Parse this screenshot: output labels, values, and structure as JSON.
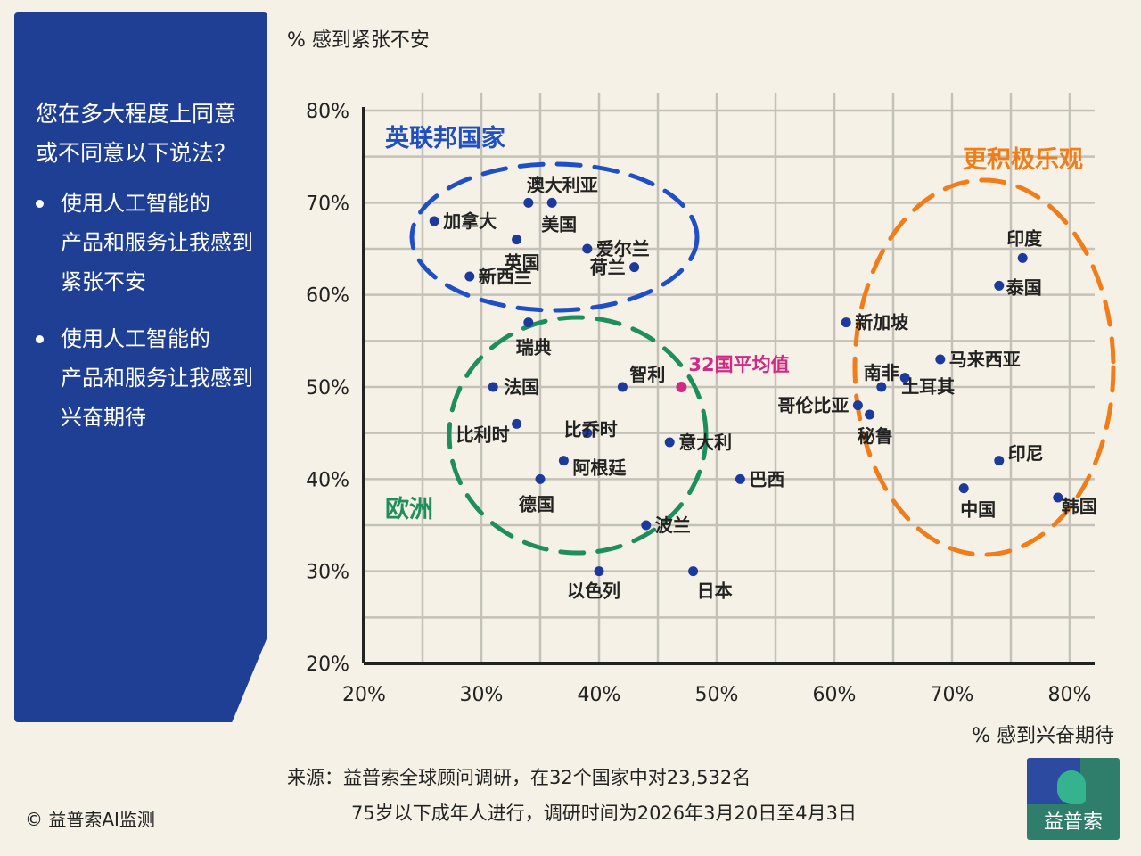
{
  "sidebar": {
    "question": [
      "您在多大程度上同意",
      "或不同意以下说法？"
    ],
    "bullets": [
      [
        "使用人工智能的",
        "产品和服务让我感到",
        "紧张不安"
      ],
      [
        "使用人工智能的",
        "产品和服务让我感到",
        "兴奋期待"
      ]
    ]
  },
  "source": {
    "line1": "来源：益普索全球顾问调研，在32个国家中对23,532名",
    "line2": "75岁以下成年人进行，调研时间为2026年3月20日至4月3日"
  },
  "copyright": "© 益普索AI监测",
  "logo": {
    "text": "益普索"
  },
  "colors": {
    "point": "#1c3a9c",
    "average": "#d12a84",
    "commonwealth": "#1f4fc2",
    "europe": "#1f8e5e",
    "optimistic": "#f07d1a"
  },
  "chart_data": {
    "type": "scatter",
    "ylabel": "% 感到紧张不安",
    "xlabel": "% 感到兴奋期待",
    "xlim": [
      20,
      80
    ],
    "ylim": [
      20,
      80
    ],
    "xticks": [
      20,
      30,
      40,
      50,
      60,
      70,
      80
    ],
    "yticks": [
      20,
      30,
      40,
      50,
      60,
      70,
      80
    ],
    "tick_suffix": "%",
    "grid": true,
    "points": [
      {
        "label": "加拿大",
        "x": 26,
        "y": 68
      },
      {
        "label": "澳大利亚",
        "x": 34,
        "y": 70
      },
      {
        "label": "美国",
        "x": 36,
        "y": 70
      },
      {
        "label": "英国",
        "x": 33,
        "y": 66
      },
      {
        "label": "爱尔兰",
        "x": 39,
        "y": 65
      },
      {
        "label": "新西兰",
        "x": 29,
        "y": 62
      },
      {
        "label": "荷兰",
        "x": 43,
        "y": 63
      },
      {
        "label": "瑞典",
        "x": 34,
        "y": 57
      },
      {
        "label": "法国",
        "x": 31,
        "y": 50
      },
      {
        "label": "智利",
        "x": 42,
        "y": 50
      },
      {
        "label": "比利时",
        "x": 33,
        "y": 46
      },
      {
        "label": "比乔时",
        "x": 39,
        "y": 45
      },
      {
        "label": "意大利",
        "x": 46,
        "y": 44
      },
      {
        "label": "阿根廷",
        "x": 37,
        "y": 42
      },
      {
        "label": "德国",
        "x": 35,
        "y": 40
      },
      {
        "label": "巴西",
        "x": 52,
        "y": 40
      },
      {
        "label": "波兰",
        "x": 44,
        "y": 35
      },
      {
        "label": "以色列",
        "x": 40,
        "y": 30
      },
      {
        "label": "日本",
        "x": 48,
        "y": 30
      },
      {
        "label": "新加坡",
        "x": 61,
        "y": 57
      },
      {
        "label": "南非",
        "x": 64,
        "y": 50
      },
      {
        "label": "马来西亚",
        "x": 69,
        "y": 53
      },
      {
        "label": "哥伦比亚",
        "x": 62,
        "y": 48
      },
      {
        "label": "土耳其",
        "x": 66,
        "y": 51
      },
      {
        "label": "秘鲁",
        "x": 63,
        "y": 47
      },
      {
        "label": "印度",
        "x": 76,
        "y": 64
      },
      {
        "label": "泰国",
        "x": 74,
        "y": 61
      },
      {
        "label": "印尼",
        "x": 74,
        "y": 42
      },
      {
        "label": "中国",
        "x": 71,
        "y": 39
      },
      {
        "label": "韩国",
        "x": 79,
        "y": 38
      }
    ],
    "average": {
      "label": "32国平均值",
      "x": 47,
      "y": 50
    },
    "groups": [
      {
        "name": "英联邦国家"
      },
      {
        "name": "欧洲"
      },
      {
        "name": "更积极乐观"
      }
    ]
  }
}
